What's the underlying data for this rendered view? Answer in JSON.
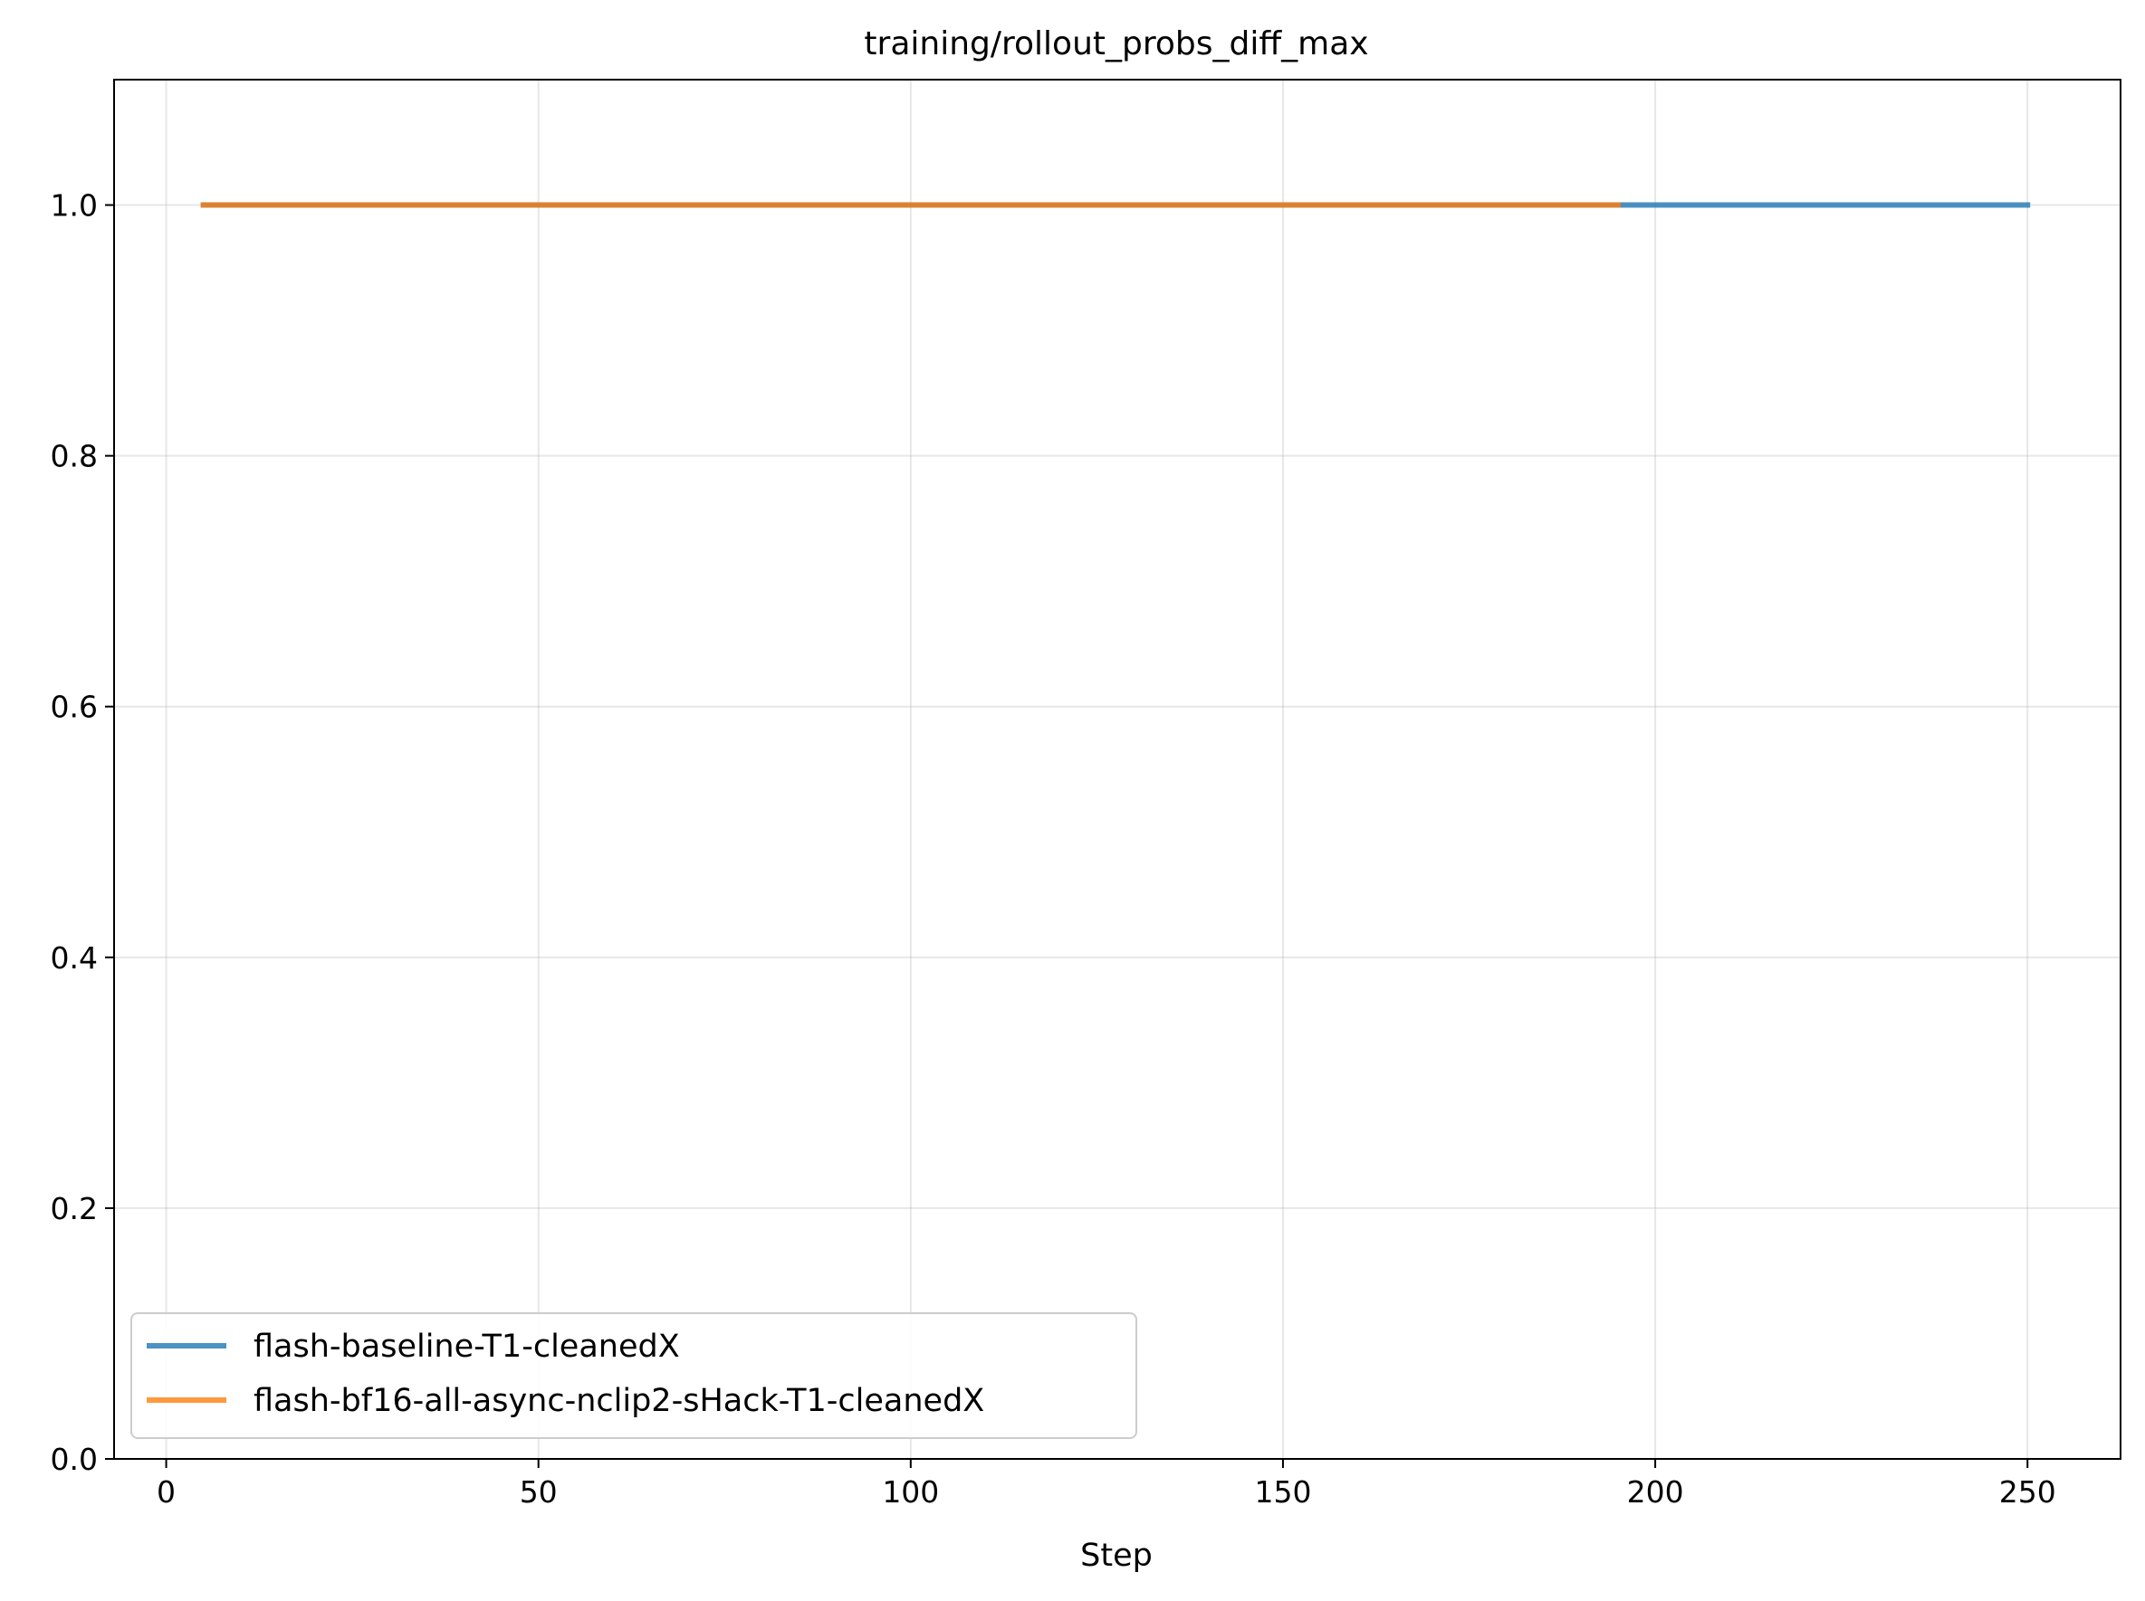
{
  "chart_data": {
    "type": "line",
    "title": "training/rollout_probs_diff_max",
    "xlabel": "Step",
    "ylabel": "",
    "xlim": [
      -7,
      262.5
    ],
    "ylim": [
      0.0,
      1.1
    ],
    "xticks": [
      0,
      50,
      100,
      150,
      200,
      250
    ],
    "yticks": [
      0.0,
      0.2,
      0.4,
      0.6,
      0.8,
      1.0
    ],
    "xtick_labels": [
      "0",
      "50",
      "100",
      "150",
      "200",
      "250"
    ],
    "ytick_labels": [
      "0.0",
      "0.2",
      "0.4",
      "0.6",
      "0.8",
      "1.0"
    ],
    "grid": true,
    "legend_position": "lower-left",
    "series": [
      {
        "name": "flash-baseline-T1-cleanedX",
        "color": "#1f77b4",
        "x": [
          5,
          250
        ],
        "y": [
          1.0,
          1.0
        ]
      },
      {
        "name": "flash-bf16-all-async-nclip2-sHack-T1-cleanedX",
        "color": "#ff7f0e",
        "x": [
          5,
          195
        ],
        "y": [
          1.0,
          1.0
        ]
      }
    ]
  }
}
